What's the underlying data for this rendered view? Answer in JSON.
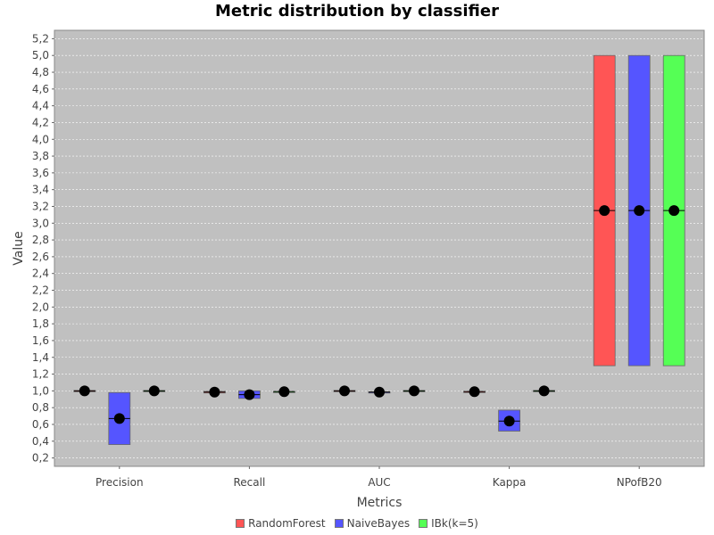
{
  "chart_data": {
    "type": "box",
    "title": "Metric distribution by classifier",
    "xlabel": "Metrics",
    "ylabel": "Value",
    "categories": [
      "Precision",
      "Recall",
      "AUC",
      "Kappa",
      "NPofB20"
    ],
    "ylim": [
      0.1,
      5.3
    ],
    "yticks": [
      0.2,
      0.4,
      0.6,
      0.8,
      1.0,
      1.2,
      1.4,
      1.6,
      1.8,
      2.0,
      2.2,
      2.4,
      2.6,
      2.8,
      3.0,
      3.2,
      3.4,
      3.6,
      3.8,
      4.0,
      4.2,
      4.4,
      4.6,
      4.8,
      5.0,
      5.2
    ],
    "decimal_separator": ",",
    "grid": true,
    "legend_position": "bottom",
    "series": [
      {
        "name": "RandomForest",
        "color": "#ff5555",
        "boxes": [
          {
            "q1": 0.995,
            "median": 1.0,
            "q3": 1.005,
            "mean": 1.0
          },
          {
            "q1": 0.975,
            "median": 0.985,
            "q3": 0.995,
            "mean": 0.985
          },
          {
            "q1": 0.995,
            "median": 1.0,
            "q3": 1.005,
            "mean": 1.0
          },
          {
            "q1": 0.985,
            "median": 0.99,
            "q3": 0.995,
            "mean": 0.99
          },
          {
            "q1": 1.3,
            "median": 3.15,
            "q3": 5.0,
            "mean": 3.15
          }
        ]
      },
      {
        "name": "NaiveBayes",
        "color": "#5555ff",
        "boxes": [
          {
            "q1": 0.36,
            "median": 0.67,
            "q3": 0.98,
            "mean": 0.67
          },
          {
            "q1": 0.91,
            "median": 0.955,
            "q3": 1.0,
            "mean": 0.955
          },
          {
            "q1": 0.98,
            "median": 0.985,
            "q3": 0.99,
            "mean": 0.985
          },
          {
            "q1": 0.52,
            "median": 0.64,
            "q3": 0.77,
            "mean": 0.64
          },
          {
            "q1": 1.3,
            "median": 3.15,
            "q3": 5.0,
            "mean": 3.15
          }
        ]
      },
      {
        "name": "IBk(k=5)",
        "color": "#55ff55",
        "boxes": [
          {
            "q1": 0.995,
            "median": 1.0,
            "q3": 1.005,
            "mean": 1.0
          },
          {
            "q1": 0.985,
            "median": 0.99,
            "q3": 0.995,
            "mean": 0.99
          },
          {
            "q1": 0.995,
            "median": 1.0,
            "q3": 1.005,
            "mean": 1.0
          },
          {
            "q1": 0.995,
            "median": 1.0,
            "q3": 1.005,
            "mean": 1.0
          },
          {
            "q1": 1.3,
            "median": 3.15,
            "q3": 5.0,
            "mean": 3.15
          }
        ]
      }
    ]
  }
}
